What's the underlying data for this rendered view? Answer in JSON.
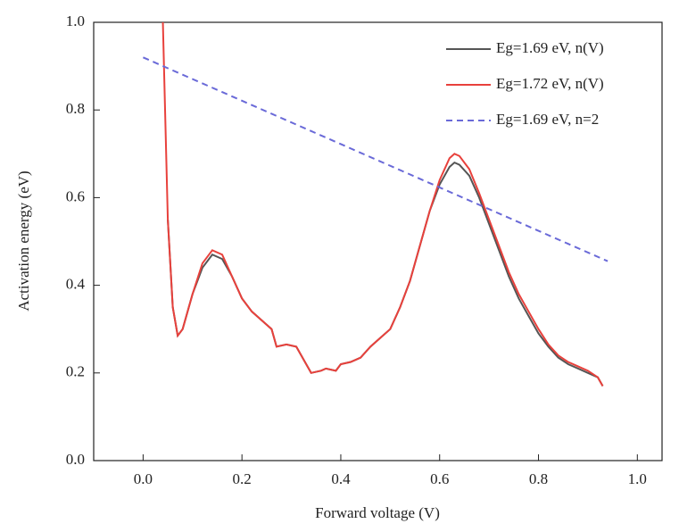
{
  "chart_data": {
    "type": "line",
    "xlabel": "Forward voltage (V)",
    "ylabel": "Activation energy (eV)",
    "xlim": [
      -0.1,
      1.05
    ],
    "ylim": [
      0,
      1
    ],
    "xticks": [
      {
        "value": 0,
        "label": "0.0"
      },
      {
        "value": 0.2,
        "label": "0.2"
      },
      {
        "value": 0.4,
        "label": "0.4"
      },
      {
        "value": 0.6,
        "label": "0.6"
      },
      {
        "value": 0.8,
        "label": "0.8"
      },
      {
        "value": 1,
        "label": "1.0"
      }
    ],
    "yticks": [
      {
        "value": 0,
        "label": "0.0"
      },
      {
        "value": 0.2,
        "label": "0.2"
      },
      {
        "value": 0.4,
        "label": "0.4"
      },
      {
        "value": 0.6,
        "label": "0.6"
      },
      {
        "value": 0.8,
        "label": "0.8"
      },
      {
        "value": 1,
        "label": "1.0"
      }
    ],
    "legend": "top-right",
    "series": [
      {
        "name": "Eg=1.69 eV, n(V)",
        "color": "#555555",
        "dash": false,
        "x": [
          0.05,
          0.06,
          0.07,
          0.08,
          0.1,
          0.12,
          0.14,
          0.16,
          0.18,
          0.2,
          0.22,
          0.24,
          0.26,
          0.27,
          0.29,
          0.31,
          0.33,
          0.34,
          0.36,
          0.37,
          0.39,
          0.4,
          0.42,
          0.44,
          0.46,
          0.48,
          0.5,
          0.52,
          0.54,
          0.56,
          0.58,
          0.6,
          0.62,
          0.63,
          0.64,
          0.66,
          0.68,
          0.7,
          0.72,
          0.74,
          0.76,
          0.78,
          0.8,
          0.82,
          0.84,
          0.86,
          0.88,
          0.9,
          0.92,
          0.93
        ],
        "values": [
          0.55,
          0.35,
          0.285,
          0.3,
          0.38,
          0.44,
          0.47,
          0.46,
          0.42,
          0.37,
          0.34,
          0.32,
          0.3,
          0.26,
          0.265,
          0.26,
          0.22,
          0.2,
          0.205,
          0.21,
          0.205,
          0.22,
          0.225,
          0.235,
          0.26,
          0.28,
          0.3,
          0.35,
          0.41,
          0.49,
          0.57,
          0.63,
          0.67,
          0.68,
          0.675,
          0.65,
          0.6,
          0.54,
          0.48,
          0.42,
          0.37,
          0.33,
          0.29,
          0.26,
          0.235,
          0.22,
          0.21,
          0.2,
          0.19,
          0.17
        ]
      },
      {
        "name": "Eg=1.72 eV, n(V)",
        "color": "#e8413c",
        "dash": false,
        "x": [
          0.04,
          0.05,
          0.06,
          0.07,
          0.08,
          0.1,
          0.12,
          0.14,
          0.16,
          0.18,
          0.2,
          0.22,
          0.24,
          0.26,
          0.27,
          0.29,
          0.31,
          0.33,
          0.34,
          0.36,
          0.37,
          0.39,
          0.4,
          0.42,
          0.44,
          0.46,
          0.48,
          0.5,
          0.52,
          0.54,
          0.56,
          0.58,
          0.6,
          0.62,
          0.63,
          0.64,
          0.66,
          0.68,
          0.7,
          0.72,
          0.74,
          0.76,
          0.78,
          0.8,
          0.82,
          0.84,
          0.86,
          0.88,
          0.9,
          0.92,
          0.93
        ],
        "values": [
          1.0,
          0.55,
          0.35,
          0.285,
          0.3,
          0.38,
          0.45,
          0.48,
          0.47,
          0.42,
          0.37,
          0.34,
          0.32,
          0.3,
          0.26,
          0.265,
          0.26,
          0.22,
          0.2,
          0.205,
          0.21,
          0.205,
          0.22,
          0.225,
          0.235,
          0.26,
          0.28,
          0.3,
          0.35,
          0.41,
          0.49,
          0.57,
          0.64,
          0.69,
          0.7,
          0.695,
          0.665,
          0.61,
          0.55,
          0.49,
          0.43,
          0.38,
          0.34,
          0.3,
          0.265,
          0.24,
          0.225,
          0.215,
          0.205,
          0.19,
          0.17
        ]
      },
      {
        "name": "Eg=1.69 eV, n=2",
        "color": "#6a6ad8",
        "dash": true,
        "x": [
          0.0,
          0.94
        ],
        "values": [
          0.92,
          0.455
        ]
      }
    ]
  }
}
